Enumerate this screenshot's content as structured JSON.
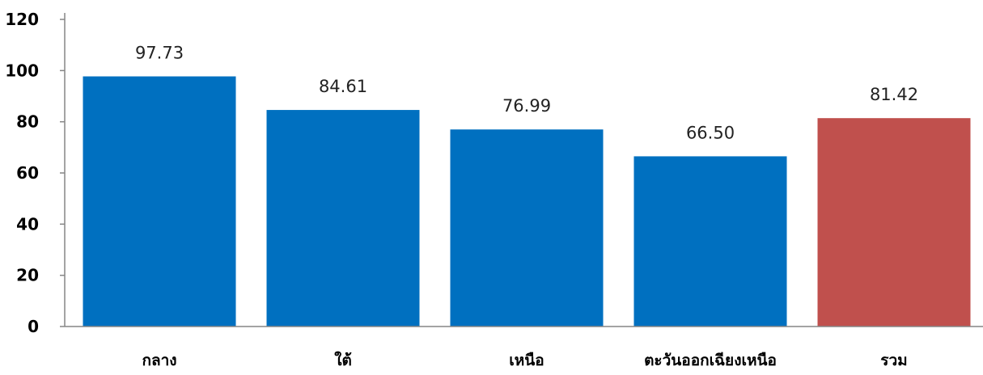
{
  "chart_data": {
    "type": "bar",
    "categories": [
      "กลาง",
      "ใต้",
      "เหนือ",
      "ตะวันออกเฉียงเหนือ",
      "รวม"
    ],
    "values": [
      97.73,
      84.61,
      76.99,
      66.5,
      81.42
    ],
    "data_labels": [
      "97.73",
      "84.61",
      "76.99",
      "66.50",
      "81.42"
    ],
    "bar_colors": [
      "#0070C0",
      "#0070C0",
      "#0070C0",
      "#0070C0",
      "#C0504D"
    ],
    "y_ticks": [
      0,
      20,
      40,
      60,
      80,
      100,
      120
    ],
    "ylim": [
      0,
      120
    ],
    "grid": false,
    "legend": "none",
    "title": "",
    "xlabel": "",
    "ylabel": ""
  }
}
